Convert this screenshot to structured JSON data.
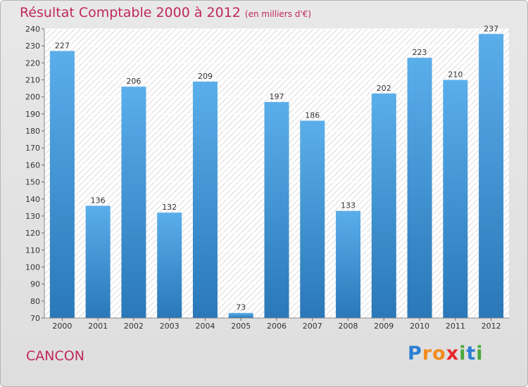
{
  "header": {
    "title": "Résultat Comptable 2000 à 2012",
    "subtitle": "(en milliers d'€)"
  },
  "footer": {
    "city": "CANCON",
    "brand": {
      "letters": [
        "P",
        "r",
        "o",
        "x",
        "i",
        "t",
        "i"
      ],
      "colors": [
        "#2a7fd4",
        "#f28c1e",
        "#f28c1e",
        "#e8262c",
        "#4aa83c",
        "#2a7fd4",
        "#4aa83c"
      ]
    }
  },
  "colors": {
    "accent": "#c0285a",
    "bar_light": "#5aaeea",
    "bar_dark": "#2a78b8"
  },
  "chart_data": {
    "type": "bar",
    "categories": [
      "2000",
      "2001",
      "2002",
      "2003",
      "2004",
      "2005",
      "2006",
      "2007",
      "2008",
      "2009",
      "2010",
      "2011",
      "2012"
    ],
    "values": [
      227,
      136,
      206,
      132,
      209,
      73,
      197,
      186,
      133,
      202,
      223,
      210,
      237
    ],
    "ylim": [
      70,
      240
    ],
    "yticks": [
      70,
      80,
      90,
      100,
      110,
      120,
      130,
      140,
      150,
      160,
      170,
      180,
      190,
      200,
      210,
      220,
      230,
      240
    ],
    "grid": true,
    "data_labels": true
  }
}
